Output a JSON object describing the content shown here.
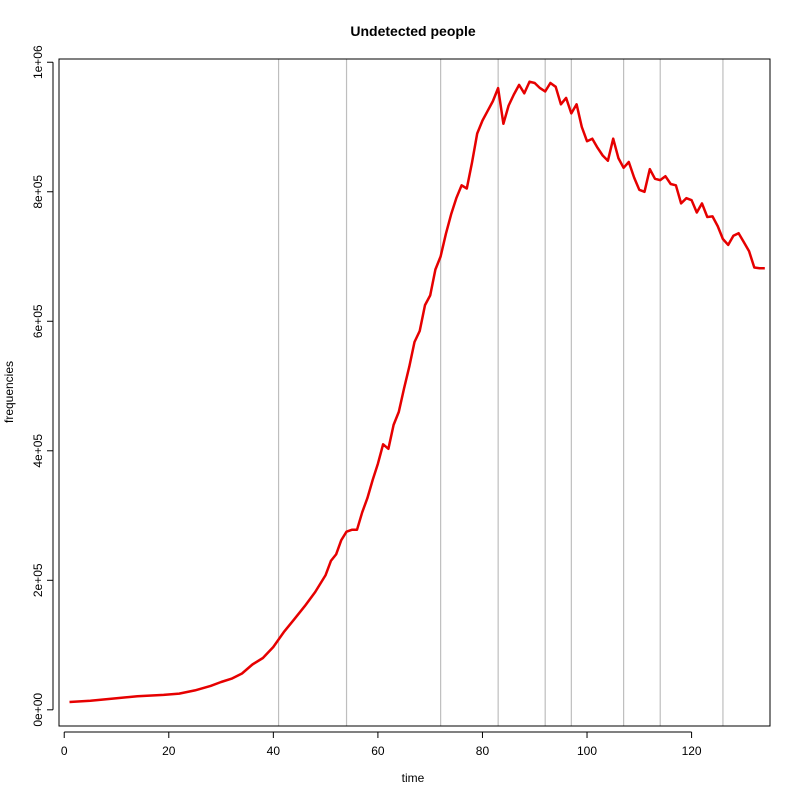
{
  "chart_data": {
    "type": "line",
    "title": "Undetected people",
    "xlabel": "time",
    "ylabel": "frequencies",
    "xlim": [
      -1,
      135
    ],
    "ylim": [
      -25000,
      1005000
    ],
    "x_ticks": [
      0,
      20,
      40,
      60,
      80,
      100,
      120
    ],
    "x_tick_labels": [
      "0",
      "20",
      "40",
      "60",
      "80",
      "100",
      "120"
    ],
    "y_ticks": [
      0,
      200000,
      400000,
      600000,
      800000,
      1000000
    ],
    "y_tick_labels": [
      "0e+00",
      "2e+05",
      "4e+05",
      "6e+05",
      "8e+05",
      "1e+06"
    ],
    "vertical_lines": [
      41,
      54,
      72,
      83,
      92,
      97,
      107,
      114,
      126
    ],
    "vertical_line_color": "#bebebe",
    "series": [
      {
        "color": "#e60000",
        "x": [
          1,
          5,
          10,
          14,
          19,
          22,
          25,
          28,
          30,
          32,
          34,
          36,
          38,
          40,
          42,
          44,
          46,
          48,
          50,
          51,
          52,
          53,
          54,
          55,
          56,
          57,
          58,
          59,
          60,
          61,
          62,
          63,
          64,
          65,
          66,
          67,
          68,
          69,
          70,
          71,
          72,
          73,
          74,
          75,
          76,
          77,
          78,
          79,
          80,
          81,
          82,
          83,
          84,
          85,
          86,
          87,
          88,
          89,
          90,
          91,
          92,
          93,
          94,
          95,
          96,
          97,
          98,
          99,
          100,
          101,
          102,
          103,
          104,
          105,
          106,
          107,
          108,
          109,
          110,
          111,
          112,
          113,
          114,
          115,
          116,
          117,
          118,
          119,
          120,
          121,
          122,
          123,
          124,
          125,
          126,
          127,
          128,
          129,
          130,
          131,
          132,
          133,
          134
        ],
        "y": [
          12000,
          14000,
          18000,
          21000,
          23000,
          25000,
          30000,
          37000,
          43000,
          48000,
          56000,
          70000,
          80000,
          97000,
          120000,
          140000,
          160000,
          182000,
          208000,
          230000,
          240000,
          262000,
          275000,
          278000,
          278000,
          305000,
          327000,
          355000,
          380000,
          410000,
          403000,
          440000,
          460000,
          496000,
          530000,
          568000,
          585000,
          625000,
          640000,
          680000,
          700000,
          735000,
          765000,
          790000,
          810000,
          805000,
          845000,
          890000,
          910000,
          925000,
          940000,
          960000,
          905000,
          933000,
          950000,
          965000,
          952000,
          970000,
          968000,
          960000,
          955000,
          968000,
          962000,
          935000,
          945000,
          921000,
          935000,
          900000,
          878000,
          882000,
          868000,
          856000,
          848000,
          882000,
          852000,
          837000,
          846000,
          822000,
          803000,
          800000,
          835000,
          820000,
          818000,
          824000,
          812000,
          810000,
          782000,
          790000,
          787000,
          768000,
          782000,
          761000,
          762000,
          747000,
          727000,
          718000,
          732000,
          736000,
          722000,
          708000,
          683000,
          682000,
          682000
        ]
      }
    ]
  }
}
